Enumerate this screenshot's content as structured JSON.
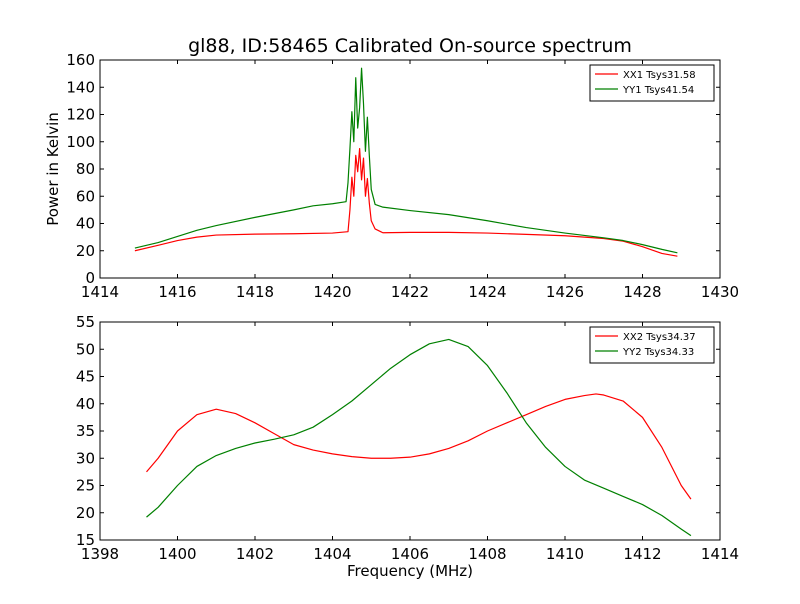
{
  "chart_data": [
    {
      "type": "line",
      "title": "gl88, ID:58465 Calibrated On-source spectrum",
      "xlabel": "",
      "ylabel": "Power in Kelvin",
      "xlim": [
        1414,
        1430
      ],
      "ylim": [
        0,
        160
      ],
      "xticks": [
        1414,
        1416,
        1418,
        1420,
        1422,
        1424,
        1426,
        1428,
        1430
      ],
      "yticks": [
        0,
        20,
        40,
        60,
        80,
        100,
        120,
        140,
        160
      ],
      "legend_position": "top-right",
      "grid": false,
      "series": [
        {
          "name": "XX1 Tsys31.58",
          "color": "#ff0000",
          "points": [
            [
              1414.9,
              20
            ],
            [
              1415.5,
              24
            ],
            [
              1416.0,
              27.5
            ],
            [
              1416.5,
              30
            ],
            [
              1417.0,
              31.5
            ],
            [
              1418.0,
              32.2
            ],
            [
              1419.0,
              32.5
            ],
            [
              1420.0,
              33
            ],
            [
              1420.4,
              34
            ],
            [
              1420.45,
              50
            ],
            [
              1420.5,
              74
            ],
            [
              1420.55,
              60
            ],
            [
              1420.6,
              90
            ],
            [
              1420.65,
              78
            ],
            [
              1420.7,
              95
            ],
            [
              1420.75,
              72
            ],
            [
              1420.8,
              88
            ],
            [
              1420.85,
              60
            ],
            [
              1420.9,
              73
            ],
            [
              1420.95,
              55
            ],
            [
              1421.0,
              42
            ],
            [
              1421.1,
              36
            ],
            [
              1421.3,
              33.2
            ],
            [
              1422.0,
              33.5
            ],
            [
              1423.0,
              33.5
            ],
            [
              1424.0,
              33
            ],
            [
              1425.0,
              32
            ],
            [
              1426.0,
              31
            ],
            [
              1427.0,
              29
            ],
            [
              1427.5,
              27
            ],
            [
              1428.0,
              23
            ],
            [
              1428.5,
              18
            ],
            [
              1428.9,
              16
            ]
          ]
        },
        {
          "name": "YY1 Tsys41.54",
          "color": "#008000",
          "points": [
            [
              1414.9,
              22
            ],
            [
              1415.5,
              26
            ],
            [
              1416.0,
              30.5
            ],
            [
              1416.5,
              35
            ],
            [
              1417.0,
              38.5
            ],
            [
              1418.0,
              44.5
            ],
            [
              1419.0,
              50
            ],
            [
              1419.5,
              53
            ],
            [
              1420.0,
              54.5
            ],
            [
              1420.35,
              56
            ],
            [
              1420.4,
              70
            ],
            [
              1420.45,
              95
            ],
            [
              1420.5,
              122
            ],
            [
              1420.55,
              100
            ],
            [
              1420.6,
              147
            ],
            [
              1420.65,
              110
            ],
            [
              1420.7,
              125
            ],
            [
              1420.75,
              154
            ],
            [
              1420.8,
              128
            ],
            [
              1420.85,
              93
            ],
            [
              1420.9,
              118
            ],
            [
              1420.95,
              90
            ],
            [
              1421.0,
              65
            ],
            [
              1421.1,
              54
            ],
            [
              1421.3,
              52
            ],
            [
              1422.0,
              49.5
            ],
            [
              1423.0,
              46.5
            ],
            [
              1424.0,
              42
            ],
            [
              1425.0,
              37
            ],
            [
              1426.0,
              33
            ],
            [
              1427.0,
              29.5
            ],
            [
              1427.5,
              27.5
            ],
            [
              1428.0,
              24.5
            ],
            [
              1428.5,
              21
            ],
            [
              1428.9,
              18.5
            ]
          ]
        }
      ]
    },
    {
      "type": "line",
      "title": "",
      "xlabel": "Frequency (MHz)",
      "ylabel": "",
      "xlim": [
        1398,
        1414
      ],
      "ylim": [
        15,
        55
      ],
      "xticks": [
        1398,
        1400,
        1402,
        1404,
        1406,
        1408,
        1410,
        1412,
        1414
      ],
      "yticks": [
        15,
        20,
        25,
        30,
        35,
        40,
        45,
        50,
        55
      ],
      "legend_position": "top-right",
      "grid": false,
      "series": [
        {
          "name": "XX2 Tsys34.37",
          "color": "#ff0000",
          "points": [
            [
              1399.2,
              27.5
            ],
            [
              1399.5,
              30
            ],
            [
              1400.0,
              35
            ],
            [
              1400.5,
              38
            ],
            [
              1401.0,
              39
            ],
            [
              1401.5,
              38.2
            ],
            [
              1402.0,
              36.5
            ],
            [
              1402.5,
              34.5
            ],
            [
              1403.0,
              32.5
            ],
            [
              1403.5,
              31.5
            ],
            [
              1404.0,
              30.8
            ],
            [
              1404.5,
              30.3
            ],
            [
              1405.0,
              30
            ],
            [
              1405.5,
              30
            ],
            [
              1406.0,
              30.2
            ],
            [
              1406.5,
              30.8
            ],
            [
              1407.0,
              31.8
            ],
            [
              1407.5,
              33.2
            ],
            [
              1408.0,
              35
            ],
            [
              1408.5,
              36.5
            ],
            [
              1409.0,
              38
            ],
            [
              1409.5,
              39.5
            ],
            [
              1410.0,
              40.8
            ],
            [
              1410.5,
              41.5
            ],
            [
              1410.8,
              41.8
            ],
            [
              1411.0,
              41.6
            ],
            [
              1411.5,
              40.5
            ],
            [
              1412.0,
              37.5
            ],
            [
              1412.5,
              32
            ],
            [
              1413.0,
              25
            ],
            [
              1413.25,
              22.5
            ]
          ]
        },
        {
          "name": "YY2 Tsys34.33",
          "color": "#008000",
          "points": [
            [
              1399.2,
              19.2
            ],
            [
              1399.5,
              21
            ],
            [
              1400.0,
              25
            ],
            [
              1400.5,
              28.5
            ],
            [
              1401.0,
              30.5
            ],
            [
              1401.5,
              31.8
            ],
            [
              1402.0,
              32.8
            ],
            [
              1402.5,
              33.5
            ],
            [
              1403.0,
              34.3
            ],
            [
              1403.5,
              35.7
            ],
            [
              1404.0,
              38
            ],
            [
              1404.5,
              40.5
            ],
            [
              1405.0,
              43.5
            ],
            [
              1405.5,
              46.5
            ],
            [
              1406.0,
              49
            ],
            [
              1406.5,
              51
            ],
            [
              1407.0,
              51.8
            ],
            [
              1407.5,
              50.5
            ],
            [
              1408.0,
              47
            ],
            [
              1408.5,
              42
            ],
            [
              1409.0,
              36.5
            ],
            [
              1409.5,
              32
            ],
            [
              1410.0,
              28.5
            ],
            [
              1410.5,
              26
            ],
            [
              1411.0,
              24.5
            ],
            [
              1411.5,
              23
            ],
            [
              1412.0,
              21.5
            ],
            [
              1412.5,
              19.5
            ],
            [
              1413.0,
              17
            ],
            [
              1413.25,
              15.8
            ]
          ]
        }
      ]
    }
  ]
}
